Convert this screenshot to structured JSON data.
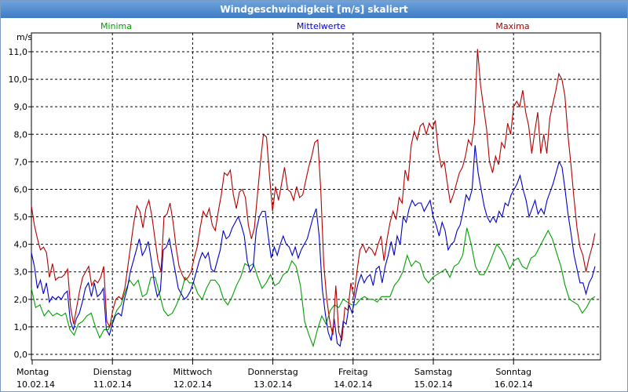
{
  "window": {
    "title": "Windgeschwindigkeit [m/s] skaliert"
  },
  "chart_data": {
    "type": "line",
    "ylabel": "m/s",
    "ylim": [
      0,
      11.5
    ],
    "yticks": [
      "0,0",
      "1,0",
      "2,0",
      "3,0",
      "4,0",
      "5,0",
      "6,0",
      "7,0",
      "8,0",
      "9,0",
      "10,0",
      "11,0"
    ],
    "grid": true,
    "legend_position": "top",
    "days": [
      {
        "name": "Montag",
        "date": "10.02.14"
      },
      {
        "name": "Dienstag",
        "date": "11.02.14"
      },
      {
        "name": "Mittwoch",
        "date": "12.02.14"
      },
      {
        "name": "Donnerstag",
        "date": "13.02.14"
      },
      {
        "name": "Freitag",
        "date": "14.02.14"
      },
      {
        "name": "Samstag",
        "date": "15.02.14"
      },
      {
        "name": "Sonntag",
        "date": "16.02.14"
      }
    ],
    "series": [
      {
        "name": "Minima",
        "color": "#00a000",
        "values": [
          2.4,
          1.7,
          1.8,
          1.4,
          1.6,
          1.4,
          1.5,
          1.4,
          1.5,
          0.9,
          0.7,
          1.1,
          1.2,
          1.4,
          1.5,
          1.0,
          0.6,
          0.9,
          0.9,
          1.2,
          1.6,
          1.8,
          2.3,
          2.7,
          2.5,
          2.7,
          2.1,
          2.2,
          2.8,
          2.8,
          2.2,
          1.6,
          1.4,
          1.5,
          1.8,
          2.2,
          2.8,
          2.6,
          2.6,
          2.2,
          2.0,
          2.4,
          2.7,
          2.7,
          2.5,
          2.0,
          1.8,
          2.1,
          2.5,
          2.8,
          3.3,
          3.2,
          3.3,
          2.8,
          2.4,
          2.6,
          2.9,
          2.5,
          2.6,
          2.9,
          3.0,
          3.4,
          3.2,
          2.5,
          1.2,
          0.7,
          0.3,
          0.9,
          1.4,
          1.1,
          1.6,
          1.8,
          1.7,
          2.0,
          1.9,
          1.8,
          1.8,
          2.0,
          2.1,
          2.0,
          2.0,
          1.9,
          2.1,
          2.1,
          2.1,
          2.5,
          2.7,
          3.0,
          3.6,
          3.2,
          3.4,
          3.3,
          2.8,
          2.6,
          2.8,
          2.9,
          3.0,
          3.1,
          2.8,
          3.2,
          3.3,
          3.6,
          4.6,
          4.0,
          3.2,
          2.9,
          2.9,
          3.2,
          3.6,
          4.0,
          3.8,
          3.5,
          3.1,
          3.4,
          3.5,
          3.2,
          3.1,
          3.5,
          3.6,
          3.9,
          4.2,
          4.5,
          4.2,
          3.7,
          3.2,
          2.5,
          2.0,
          1.9,
          1.8,
          1.5,
          1.7,
          2.0,
          2.1
        ]
      },
      {
        "name": "Mittelwerte",
        "color": "#0000c8",
        "values": [
          3.7,
          3.2,
          2.4,
          2.7,
          2.2,
          2.6,
          1.9,
          2.1,
          2.0,
          2.1,
          2.0,
          2.2,
          2.3,
          1.2,
          0.9,
          1.3,
          1.5,
          1.9,
          2.4,
          2.6,
          2.1,
          2.6,
          2.1,
          2.2,
          2.4,
          0.9,
          0.7,
          1.1,
          1.4,
          1.5,
          1.4,
          2.0,
          2.4,
          3.0,
          3.4,
          3.8,
          4.2,
          3.6,
          3.8,
          4.1,
          3.4,
          2.6,
          2.1,
          2.3,
          3.8,
          3.9,
          4.2,
          3.6,
          3.0,
          2.4,
          2.2,
          2.0,
          2.1,
          2.3,
          2.6,
          3.0,
          3.4,
          3.7,
          3.5,
          3.7,
          3.1,
          3.0,
          3.4,
          3.8,
          4.5,
          4.2,
          4.3,
          4.6,
          4.8,
          5.0,
          4.7,
          4.3,
          3.4,
          3.0,
          3.2,
          4.5,
          5.0,
          5.2,
          5.2,
          4.3,
          3.5,
          3.9,
          3.6,
          4.0,
          4.3,
          4.0,
          3.9,
          3.6,
          3.9,
          3.5,
          3.8,
          4.0,
          4.2,
          4.6,
          5.0,
          5.3,
          4.3,
          2.4,
          1.5,
          0.8,
          0.5,
          1.3,
          0.4,
          0.3,
          1.2,
          1.1,
          1.8,
          1.5,
          2.1,
          2.6,
          2.9,
          2.6,
          2.8,
          2.9,
          2.5,
          3.1,
          3.2,
          2.6,
          3.2,
          3.6,
          4.1,
          3.6,
          4.3,
          4.0,
          5.0,
          4.8,
          5.3,
          5.6,
          5.4,
          5.5,
          5.5,
          5.2,
          5.4,
          5.6,
          5.0,
          4.7,
          4.3,
          4.8,
          4.5,
          3.8,
          4.0,
          4.1,
          4.5,
          4.7,
          5.2,
          5.8,
          5.6,
          6.0,
          7.6,
          6.6,
          6.0,
          5.4,
          5.0,
          4.8,
          5.0,
          4.8,
          5.2,
          5.0,
          5.5,
          5.4,
          5.8,
          6.0,
          6.2,
          6.5,
          6.0,
          5.6,
          5.0,
          5.3,
          5.6,
          5.1,
          5.3,
          5.1,
          5.6,
          5.9,
          6.2,
          6.6,
          7.0,
          6.8,
          6.0,
          5.1,
          4.4,
          3.6,
          3.1,
          2.6,
          2.6,
          2.2,
          2.6,
          2.8,
          3.2
        ]
      },
      {
        "name": "Maxima",
        "color": "#b40000",
        "values": [
          5.4,
          4.7,
          4.2,
          3.8,
          3.9,
          3.7,
          2.8,
          3.3,
          2.7,
          2.8,
          2.8,
          2.9,
          3.1,
          1.7,
          1.1,
          1.7,
          2.3,
          2.8,
          3.0,
          3.2,
          2.5,
          2.7,
          2.6,
          2.8,
          3.2,
          1.2,
          1.0,
          1.6,
          2.0,
          2.1,
          2.0,
          2.4,
          3.2,
          4.0,
          4.8,
          5.4,
          5.2,
          4.6,
          5.3,
          5.6,
          5.0,
          4.2,
          3.4,
          3.0,
          5.0,
          5.1,
          5.5,
          4.8,
          3.9,
          3.2,
          2.9,
          2.7,
          2.8,
          3.0,
          3.5,
          3.9,
          4.6,
          5.2,
          5.0,
          5.3,
          4.7,
          4.5,
          5.2,
          5.8,
          6.6,
          6.5,
          6.7,
          5.8,
          5.3,
          5.9,
          6.0,
          5.7,
          4.7,
          4.2,
          4.6,
          5.8,
          7.0,
          8.0,
          7.9,
          6.5,
          5.2,
          6.1,
          5.6,
          6.2,
          6.8,
          6.0,
          5.9,
          5.6,
          6.1,
          5.7,
          5.8,
          6.3,
          6.8,
          7.2,
          7.7,
          7.8,
          6.0,
          3.3,
          2.0,
          1.2,
          0.7,
          2.5,
          0.8,
          0.5,
          1.7,
          1.6,
          2.6,
          2.1,
          3.0,
          3.8,
          4.0,
          3.7,
          3.9,
          3.8,
          3.6,
          4.0,
          4.3,
          3.4,
          4.2,
          4.8,
          5.2,
          4.9,
          5.7,
          5.5,
          6.7,
          6.3,
          7.6,
          8.1,
          7.8,
          8.3,
          8.4,
          8.0,
          8.4,
          8.2,
          8.5,
          7.4,
          6.8,
          7.0,
          6.2,
          5.5,
          5.8,
          6.2,
          6.6,
          6.8,
          7.2,
          7.8,
          7.6,
          8.4,
          11.1,
          9.8,
          9.0,
          8.2,
          7.0,
          6.6,
          7.2,
          6.9,
          7.7,
          7.5,
          8.4,
          8.0,
          9.0,
          9.2,
          9.0,
          9.6,
          8.8,
          8.3,
          7.3,
          8.1,
          8.8,
          7.3,
          8.0,
          7.3,
          8.6,
          9.1,
          9.6,
          10.2,
          10.0,
          9.4,
          8.0,
          6.9,
          5.7,
          4.6,
          3.9,
          3.6,
          3.0,
          3.5,
          3.9,
          4.4
        ]
      }
    ]
  }
}
